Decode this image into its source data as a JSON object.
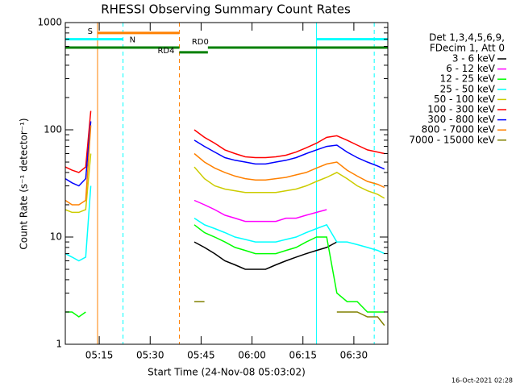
{
  "chart_data": {
    "type": "line",
    "title": "RHESSI Observing Summary Count Rates",
    "x_label": "Start Time (24-Nov-08 05:03:02)",
    "y_label": "Count Rate (s⁻¹ detector⁻¹)",
    "footer": "16-Oct-2021 02:28",
    "legend_title": [
      "Det 1,3,4,5,6,9,",
      "FDecim 1, Att 0"
    ],
    "legend": "upper right",
    "log_y": true,
    "xlim": [
      305,
      400
    ],
    "xticks": [
      {
        "value": 315,
        "label": "05:15"
      },
      {
        "value": 330,
        "label": "05:30"
      },
      {
        "value": 345,
        "label": "05:45"
      },
      {
        "value": 360,
        "label": "06:00"
      },
      {
        "value": 375,
        "label": "06:15"
      },
      {
        "value": 390,
        "label": "06:30"
      }
    ],
    "ylim": [
      1,
      1000
    ],
    "yticks": [
      1,
      10,
      100,
      1000
    ],
    "x": [
      305,
      307,
      309,
      311,
      312.5,
      325,
      343,
      346,
      349,
      352,
      355,
      358,
      361,
      364,
      367,
      370,
      373,
      376,
      379,
      382,
      385,
      388,
      391,
      394,
      397,
      399
    ],
    "series": [
      {
        "name": "3 - 6 keV",
        "color": "#000000",
        "values": [
          null,
          null,
          null,
          null,
          null,
          null,
          9,
          8,
          7,
          6,
          5.5,
          5,
          5,
          5,
          5.5,
          6,
          6.5,
          7,
          7.5,
          8,
          9,
          null,
          null,
          null,
          null,
          null
        ]
      },
      {
        "name": "6 - 12 keV",
        "color": "#ff00ff",
        "values": [
          null,
          null,
          null,
          null,
          null,
          null,
          22,
          20,
          18,
          16,
          15,
          14,
          14,
          14,
          14,
          15,
          15,
          16,
          17,
          18,
          null,
          null,
          null,
          null,
          null,
          null
        ]
      },
      {
        "name": "12 - 25 keV",
        "color": "#00ff00",
        "values": [
          2,
          2,
          1.8,
          2,
          null,
          null,
          13,
          11,
          10,
          9,
          8,
          7.5,
          7,
          7,
          7,
          7.5,
          8,
          9,
          10,
          10,
          3,
          2.5,
          2.5,
          2,
          2,
          2
        ]
      },
      {
        "name": "25 - 50 keV",
        "color": "#00ffff",
        "values": [
          7,
          6.5,
          6,
          6.5,
          30,
          null,
          15,
          13,
          12,
          11,
          10,
          9.5,
          9,
          9,
          9,
          9.5,
          10,
          11,
          12,
          13,
          9,
          9,
          8.5,
          8,
          7.5,
          7
        ]
      },
      {
        "name": "50 - 100 keV",
        "color": "#cccc00",
        "values": [
          18,
          17,
          17,
          18,
          60,
          null,
          45,
          35,
          30,
          28,
          27,
          26,
          26,
          26,
          26,
          27,
          28,
          30,
          33,
          36,
          40,
          35,
          30,
          27,
          25,
          23
        ]
      },
      {
        "name": "100 - 300 keV",
        "color": "#ff0000",
        "values": [
          45,
          42,
          40,
          45,
          150,
          null,
          100,
          85,
          75,
          65,
          60,
          56,
          55,
          55,
          56,
          58,
          62,
          68,
          75,
          85,
          88,
          80,
          72,
          65,
          62,
          60
        ]
      },
      {
        "name": "300 - 800 keV",
        "color": "#0000ff",
        "values": [
          35,
          32,
          30,
          35,
          120,
          null,
          80,
          70,
          62,
          55,
          52,
          50,
          48,
          48,
          50,
          52,
          55,
          60,
          65,
          70,
          72,
          62,
          55,
          50,
          46,
          43
        ]
      },
      {
        "name": "800 - 7000 keV",
        "color": "#ff8000",
        "values": [
          22,
          20,
          20,
          22,
          110,
          null,
          60,
          50,
          44,
          40,
          37,
          35,
          34,
          34,
          35,
          36,
          38,
          40,
          44,
          48,
          50,
          42,
          37,
          33,
          31,
          29
        ]
      },
      {
        "name": "7000 - 15000 keV",
        "color": "#808000",
        "values": [
          null,
          null,
          null,
          null,
          null,
          null,
          2.5,
          2.5,
          null,
          null,
          null,
          null,
          null,
          null,
          null,
          null,
          null,
          null,
          null,
          null,
          2,
          2,
          2,
          1.8,
          1.8,
          1.5
        ]
      }
    ],
    "markers": [
      {
        "x": 314.5,
        "color": "#ff8000",
        "style": "solid"
      },
      {
        "x": 322,
        "color": "#00ffff",
        "style": "dashed"
      },
      {
        "x": 338.6,
        "color": "#ff8000",
        "style": "dashed"
      },
      {
        "x": 379,
        "color": "#00ffff",
        "style": "solid"
      },
      {
        "x": 396,
        "color": "#00ffff",
        "style": "dashed"
      }
    ],
    "annotations": [
      {
        "text": "S",
        "color": "#ff8000",
        "x": [
          314.5,
          338.6
        ],
        "y": 800,
        "label_at": "start"
      },
      {
        "text": "N",
        "color": "#00ffff",
        "x": [
          305,
          322
        ],
        "y": 700,
        "label_at": "end"
      },
      {
        "color": "#00ffff",
        "x": [
          379,
          400
        ],
        "y": 700
      },
      {
        "color": "#008000",
        "x": [
          305,
          338.6
        ],
        "y": 585
      },
      {
        "text": "RD0",
        "color": "#008000",
        "x": [
          347,
          400
        ],
        "y": 585,
        "label_at": "above"
      },
      {
        "text": "RD4",
        "color": "#008000",
        "x": [
          338.6,
          347
        ],
        "y": 528,
        "label_at": "start"
      }
    ]
  }
}
